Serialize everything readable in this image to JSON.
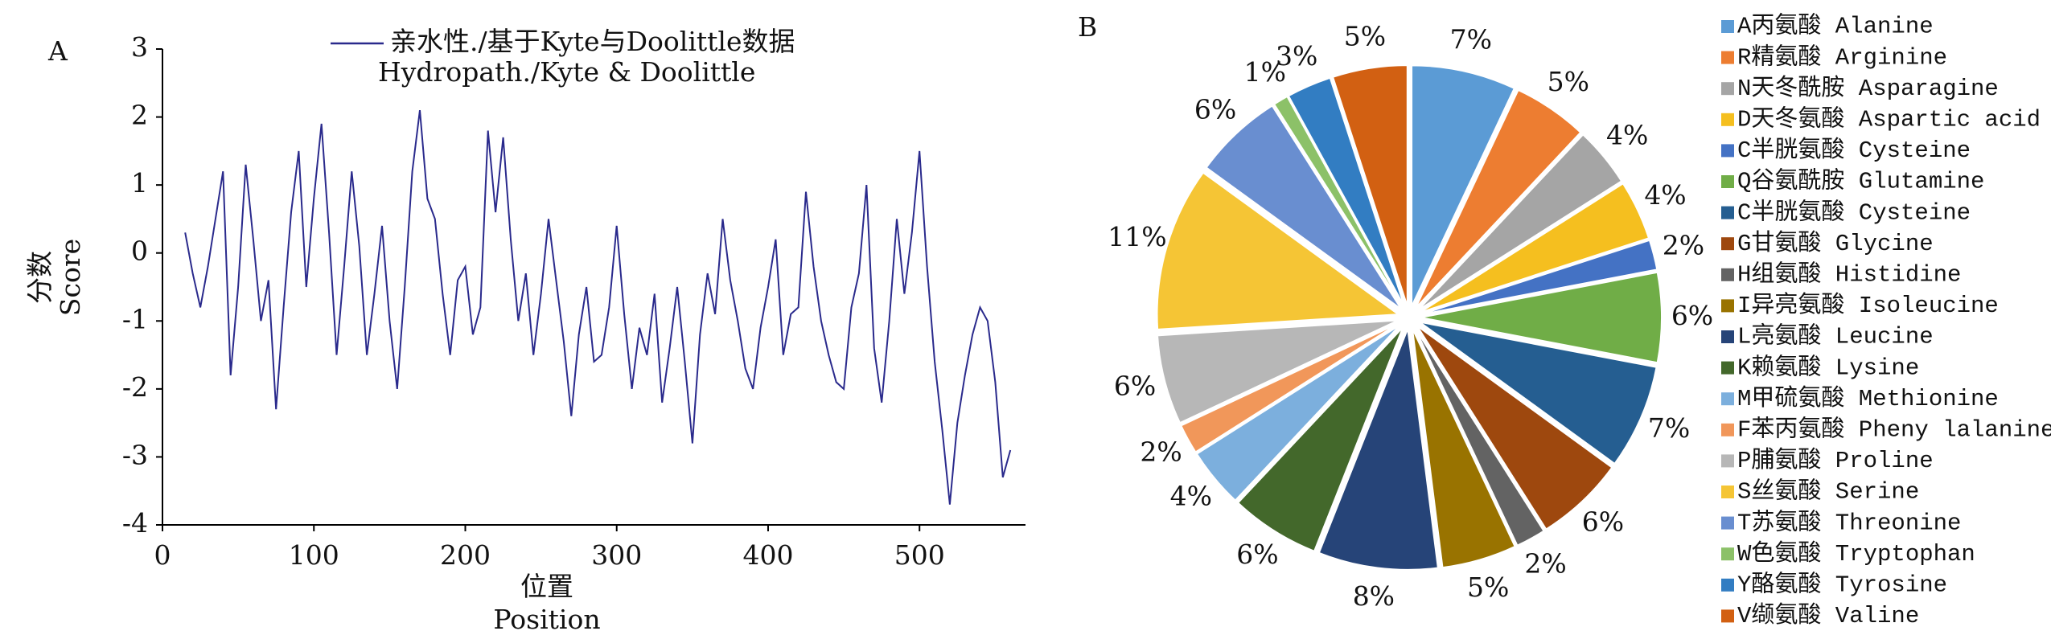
{
  "chart_data": [
    {
      "type": "line",
      "panel": "A",
      "xlabel": "位置",
      "xlabel_en": "Position",
      "ylabel": "分数",
      "ylabel_en": "Score",
      "legend_note": "Hydropath./Kyte & Doolittle",
      "xlim": [
        0,
        570
      ],
      "xticks": [
        0,
        100,
        200,
        300,
        400,
        500
      ],
      "ylim": [
        -4,
        3
      ],
      "yticks": [
        -4,
        -3,
        -2,
        -1,
        0,
        1,
        2,
        3
      ],
      "x": [
        15,
        20,
        25,
        30,
        35,
        40,
        45,
        50,
        55,
        60,
        65,
        70,
        75,
        80,
        85,
        90,
        95,
        100,
        105,
        110,
        115,
        120,
        125,
        130,
        135,
        140,
        145,
        150,
        155,
        160,
        165,
        170,
        175,
        180,
        185,
        190,
        195,
        200,
        205,
        210,
        215,
        220,
        225,
        230,
        235,
        240,
        245,
        250,
        255,
        260,
        265,
        270,
        275,
        280,
        285,
        290,
        295,
        300,
        305,
        310,
        315,
        320,
        325,
        330,
        335,
        340,
        345,
        350,
        355,
        360,
        365,
        370,
        375,
        380,
        385,
        390,
        395,
        400,
        405,
        410,
        415,
        420,
        425,
        430,
        435,
        440,
        445,
        450,
        455,
        460,
        465,
        470,
        475,
        480,
        485,
        490,
        495,
        500,
        505,
        510,
        515,
        520,
        525,
        530,
        535,
        540,
        545,
        550,
        555,
        560
      ],
      "series": [
        {
          "name": "亲水性./基于Kyte与Doolittle数据",
          "color": "#2a2a8c",
          "values": [
            0.3,
            -0.3,
            -0.8,
            -0.2,
            0.5,
            1.2,
            -1.8,
            -0.5,
            1.3,
            0.2,
            -1.0,
            -0.4,
            -2.3,
            -0.8,
            0.6,
            1.5,
            -0.5,
            0.8,
            1.9,
            0.3,
            -1.5,
            -0.2,
            1.2,
            0.1,
            -1.5,
            -0.6,
            0.4,
            -1.0,
            -2.0,
            -0.5,
            1.2,
            2.1,
            0.8,
            0.5,
            -0.6,
            -1.5,
            -0.4,
            -0.2,
            -1.2,
            -0.8,
            1.8,
            0.6,
            1.7,
            0.2,
            -1.0,
            -0.3,
            -1.5,
            -0.6,
            0.5,
            -0.4,
            -1.3,
            -2.4,
            -1.2,
            -0.5,
            -1.6,
            -1.5,
            -0.8,
            0.4,
            -0.9,
            -2.0,
            -1.1,
            -1.5,
            -0.6,
            -2.2,
            -1.4,
            -0.5,
            -1.6,
            -2.8,
            -1.2,
            -0.3,
            -0.9,
            0.5,
            -0.4,
            -1.0,
            -1.7,
            -2.0,
            -1.1,
            -0.5,
            0.2,
            -1.5,
            -0.9,
            -0.8,
            0.9,
            -0.2,
            -1.0,
            -1.5,
            -1.9,
            -2.0,
            -0.8,
            -0.3,
            1.0,
            -1.4,
            -2.2,
            -1.0,
            0.5,
            -0.6,
            0.3,
            1.5,
            -0.2,
            -1.6,
            -2.6,
            -3.7,
            -2.5,
            -1.8,
            -1.2,
            -0.8,
            -1.0,
            -1.9,
            -3.3,
            -2.9
          ]
        }
      ]
    },
    {
      "type": "pie",
      "panel": "B",
      "categories": [
        "A丙氨酸 Alanine",
        "R精氨酸 Arginine",
        "N天冬酰胺 Asparagine",
        "D天冬氨酸 Aspartic acid",
        "C半胱氨酸 Cysteine",
        "Q谷氨酰胺 Glutamine",
        "C半胱氨酸 Cysteine",
        "G甘氨酸 Glycine",
        "H组氨酸 Histidine",
        "I异亮氨酸 Isoleucine",
        "L亮氨酸 Leucine",
        "K赖氨酸 Lysine",
        "M甲硫氨酸 Methionine",
        "F苯丙氨酸 Pheny lalanine",
        "P脯氨酸 Proline",
        "S丝氨酸 Serine",
        "T苏氨酸  Threonine",
        "W色氨酸 Tryptophan",
        "Y酪氨酸 Tyrosine",
        "V缬氨酸 Valine"
      ],
      "values": [
        7,
        5,
        4,
        4,
        2,
        6,
        7,
        6,
        2,
        5,
        8,
        6,
        4,
        2,
        6,
        11,
        6,
        1,
        3,
        5
      ],
      "value_labels": [
        "7%",
        "5%",
        "4%",
        "4%",
        "2%",
        "6%",
        "7%",
        "6%",
        "2%",
        "5%",
        "8%",
        "6%",
        "4%",
        "2%",
        "6%",
        "11%",
        "6%",
        "1%",
        "3%",
        "5%"
      ],
      "colors": [
        "#5b9bd5",
        "#ed7d31",
        "#a5a5a5",
        "#f5bf1f",
        "#4472c4",
        "#70ad47",
        "#255e91",
        "#9e480e",
        "#636363",
        "#997300",
        "#264478",
        "#43682b",
        "#7cafdd",
        "#f1975a",
        "#b7b7b7",
        "#f5c535",
        "#698ed0",
        "#8cc168",
        "#327dc2",
        "#d26012"
      ],
      "legend": "right"
    }
  ]
}
